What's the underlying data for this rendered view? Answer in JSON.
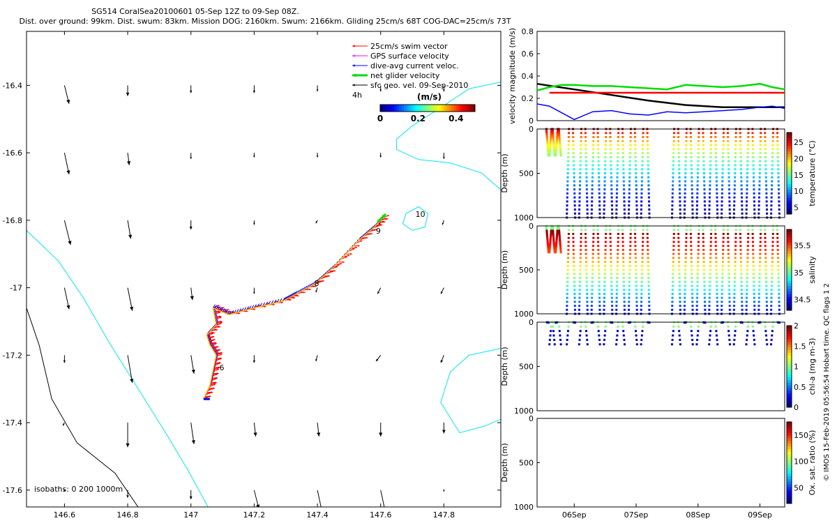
{
  "header": {
    "line1": "SG514 CoralSea20100601 05-Sep 12Z to 09-Sep 08Z.",
    "line2": "Dist. over ground: 99km. Dist. swum: 83km. Mission DOG: 2160km. Swum: 2166km. Gliding 25cm/s 68T COG-DAC=25cm/s 73T"
  },
  "credit": "© IMOS 15-Feb-2019 05:56:54 Hobart time. QC flags 1  2",
  "colors": {
    "swim": "#ff0000",
    "gps": "#ff00ff",
    "dac": "#0000ff",
    "net": "#00dd00",
    "geo": "#000000",
    "coast": "#00e5ee",
    "isobath_black": "#000000"
  },
  "chart_data": [
    {
      "type": "scatter",
      "name": "map",
      "xlim": [
        146.48,
        147.98
      ],
      "ylim": [
        -17.65,
        -16.24
      ],
      "xticks": [
        "146.6",
        "146.8",
        "147",
        "147.2",
        "147.4",
        "147.6",
        "147.8"
      ],
      "xtick_values": [
        146.6,
        146.8,
        147.0,
        147.2,
        147.4,
        147.6,
        147.8
      ],
      "yticks": [
        "-16.4",
        "-16.6",
        "-16.8",
        "-17",
        "-17.2",
        "-17.4",
        "-17.6"
      ],
      "ytick_values": [
        -16.4,
        -16.6,
        -16.8,
        -17.0,
        -17.2,
        -17.4,
        -17.6
      ],
      "legend": [
        {
          "label": "25cm/s swim vector",
          "color": "#ff0000"
        },
        {
          "label": "GPS surface velocity",
          "color": "#ff00ff"
        },
        {
          "label": "dive-avg current veloc.",
          "color": "#0000ff"
        },
        {
          "label": "net glider velocity",
          "color": "#00dd00"
        },
        {
          "label": "sfc geo. vel. 09-Sep-2010",
          "color": "#000000"
        }
      ],
      "legend_note": "4h",
      "colorbar": {
        "title": "(m/s)",
        "ticks": [
          "0",
          "0.2",
          "0.4"
        ],
        "tick_values": [
          0,
          0.2,
          0.4
        ],
        "range": [
          0,
          0.5
        ]
      },
      "isobath_label": "isobaths:  0    200   1000m",
      "track_labels": [
        {
          "text": "6",
          "x": 147.09,
          "y": -17.245
        },
        {
          "text": "8",
          "x": 147.39,
          "y": -16.995
        },
        {
          "text": "9",
          "x": 147.585,
          "y": -16.84
        },
        {
          "text": "10",
          "x": 147.71,
          "y": -16.79
        }
      ],
      "track": [
        [
          147.04,
          -17.33
        ],
        [
          147.06,
          -17.29
        ],
        [
          147.07,
          -17.245
        ],
        [
          147.08,
          -17.2
        ],
        [
          147.06,
          -17.17
        ],
        [
          147.05,
          -17.14
        ],
        [
          147.08,
          -17.11
        ],
        [
          147.07,
          -17.06
        ],
        [
          147.12,
          -17.08
        ],
        [
          147.2,
          -17.06
        ],
        [
          147.29,
          -17.04
        ],
        [
          147.33,
          -17.02
        ],
        [
          147.39,
          -16.99
        ],
        [
          147.45,
          -16.94
        ],
        [
          147.53,
          -16.86
        ],
        [
          147.58,
          -16.82
        ],
        [
          147.61,
          -16.79
        ]
      ],
      "geo_vectors": {
        "lons": [
          146.6,
          146.8,
          147.0,
          147.2,
          147.4,
          147.6,
          147.8
        ],
        "lats": [
          -16.4,
          -16.6,
          -16.8,
          -17.0,
          -17.2,
          -17.4,
          -17.6
        ],
        "u": [
          [
            0.03,
            0.0,
            0.0,
            0.0,
            0.0,
            0.0,
            0.0
          ],
          [
            0.03,
            0.01,
            0.0,
            0.0,
            0.0,
            0.0,
            0.0
          ],
          [
            0.04,
            0.02,
            0.0,
            0.0,
            -0.01,
            -0.01,
            -0.01
          ],
          [
            0.03,
            0.03,
            0.01,
            0.0,
            -0.01,
            -0.02,
            -0.02
          ],
          [
            0.0,
            0.03,
            0.02,
            0.0,
            -0.01,
            -0.03,
            -0.02
          ],
          [
            -0.01,
            0.0,
            0.02,
            0.01,
            0.01,
            0.0,
            0.0
          ],
          [
            0.0,
            0.0,
            0.0,
            0.03,
            0.03,
            0.03,
            0.0
          ]
        ],
        "v": [
          [
            -0.12,
            -0.07,
            -0.05,
            -0.05,
            -0.04,
            -0.04,
            -0.04
          ],
          [
            -0.14,
            -0.08,
            -0.04,
            -0.03,
            -0.03,
            -0.03,
            -0.04
          ],
          [
            -0.16,
            -0.12,
            -0.06,
            -0.03,
            -0.02,
            -0.03,
            -0.03
          ],
          [
            -0.14,
            -0.15,
            -0.08,
            -0.04,
            -0.03,
            -0.04,
            -0.04
          ],
          [
            -0.05,
            -0.18,
            -0.12,
            -0.05,
            -0.04,
            -0.04,
            -0.05
          ],
          [
            -0.02,
            -0.16,
            -0.14,
            -0.09,
            -0.09,
            -0.09,
            -0.07
          ],
          [
            -0.01,
            -0.05,
            -0.06,
            -0.12,
            -0.14,
            -0.14,
            -0.01
          ]
        ]
      },
      "coast_west": [
        [
          146.48,
          -16.83
        ],
        [
          146.58,
          -16.92
        ],
        [
          146.66,
          -17.03
        ],
        [
          146.74,
          -17.16
        ],
        [
          146.84,
          -17.31
        ],
        [
          146.92,
          -17.43
        ],
        [
          146.99,
          -17.54
        ],
        [
          147.06,
          -17.66
        ]
      ],
      "isobath_black": [
        [
          146.48,
          -17.06
        ],
        [
          146.52,
          -17.17
        ],
        [
          146.56,
          -17.33
        ],
        [
          146.64,
          -17.46
        ],
        [
          146.76,
          -17.55
        ],
        [
          146.84,
          -17.66
        ]
      ],
      "coast_ne": [
        [
          147.98,
          -16.39
        ],
        [
          147.88,
          -16.41
        ],
        [
          147.8,
          -16.46
        ],
        [
          147.7,
          -16.52
        ],
        [
          147.65,
          -16.56
        ],
        [
          147.65,
          -16.59
        ],
        [
          147.72,
          -16.62
        ],
        [
          147.82,
          -16.63
        ],
        [
          147.92,
          -16.66
        ],
        [
          147.98,
          -16.71
        ]
      ],
      "coast_e": [
        [
          147.98,
          -17.18
        ],
        [
          147.88,
          -17.2
        ],
        [
          147.82,
          -17.25
        ],
        [
          147.79,
          -17.34
        ],
        [
          147.85,
          -17.43
        ],
        [
          147.93,
          -17.41
        ],
        [
          147.98,
          -17.39
        ]
      ],
      "island_10": [
        [
          147.68,
          -16.78
        ],
        [
          147.72,
          -16.76
        ],
        [
          147.75,
          -16.78
        ],
        [
          147.74,
          -16.82
        ],
        [
          147.7,
          -16.83
        ],
        [
          147.67,
          -16.81
        ],
        [
          147.68,
          -16.78
        ]
      ]
    },
    {
      "type": "line",
      "name": "velocity",
      "ylabel": "velocity magnitude (m/s)",
      "ylim": [
        0,
        0.8
      ],
      "yticks": [
        "0",
        "0.2",
        "0.4",
        "0.6",
        "0.8"
      ],
      "ytick_values": [
        0,
        0.2,
        0.4,
        0.6,
        0.8
      ],
      "xlim": [
        5.4,
        9.4
      ],
      "series": [
        {
          "color": "#000000",
          "x": [
            5.4,
            6.0,
            6.6,
            7.2,
            7.8,
            8.4,
            9.0,
            9.4
          ],
          "y": [
            0.33,
            0.28,
            0.23,
            0.18,
            0.14,
            0.12,
            0.12,
            0.12
          ]
        },
        {
          "color": "#0000ff",
          "x": [
            5.4,
            5.6,
            5.8,
            6.0,
            6.3,
            6.6,
            6.9,
            7.2,
            7.5,
            7.8,
            8.1,
            8.4,
            8.7,
            9.0,
            9.2,
            9.4
          ],
          "y": [
            0.15,
            0.13,
            0.07,
            0.01,
            0.08,
            0.09,
            0.06,
            0.05,
            0.08,
            0.07,
            0.08,
            0.09,
            0.1,
            0.12,
            0.13,
            0.11
          ]
        },
        {
          "color": "#00dd00",
          "x": [
            5.4,
            5.6,
            5.8,
            6.0,
            6.3,
            6.6,
            6.9,
            7.2,
            7.5,
            7.8,
            8.1,
            8.4,
            8.7,
            9.0,
            9.2,
            9.4
          ],
          "y": [
            0.27,
            0.3,
            0.32,
            0.32,
            0.31,
            0.31,
            0.3,
            0.29,
            0.28,
            0.32,
            0.31,
            0.3,
            0.31,
            0.33,
            0.3,
            0.28
          ]
        },
        {
          "color": "#ff0000",
          "x": [
            5.6,
            7.0,
            7.6,
            9.4
          ],
          "y": [
            0.25,
            0.25,
            0.25,
            0.25
          ]
        }
      ]
    },
    {
      "type": "scatter",
      "name": "temperature",
      "ylabel": "Depth (m)",
      "ylim": [
        1000,
        0
      ],
      "yticks": [
        "0",
        "500",
        "1000"
      ],
      "ytick_values": [
        0,
        500,
        1000
      ],
      "colorbar_label": "temperature (°C)",
      "cticks": [
        "5",
        "10",
        "15",
        "20",
        "25"
      ],
      "ctick_values": [
        5,
        10,
        15,
        20,
        25
      ],
      "crange": [
        3,
        28
      ]
    },
    {
      "type": "scatter",
      "name": "salinity",
      "ylabel": "Depth (m)",
      "ylim": [
        1000,
        0
      ],
      "yticks": [
        "0",
        "500",
        "1000"
      ],
      "ytick_values": [
        0,
        500,
        1000
      ],
      "colorbar_label": "salinity",
      "cticks": [
        "34.5",
        "35",
        "35.5"
      ],
      "ctick_values": [
        34.5,
        35,
        35.5
      ],
      "crange": [
        34.3,
        35.8
      ]
    },
    {
      "type": "scatter",
      "name": "chl-a",
      "ylabel": "Depth (m)",
      "ylim": [
        1000,
        0
      ],
      "yticks": [
        "0",
        "500",
        "1000"
      ],
      "ytick_values": [
        0,
        500,
        1000
      ],
      "colorbar_label": "chl-a (mg m-3)",
      "cticks": [
        "0",
        "0.5",
        "1",
        "1.5",
        "2"
      ],
      "ctick_values": [
        0,
        0.5,
        1,
        1.5,
        2
      ],
      "crange": [
        0,
        2
      ]
    },
    {
      "type": "scatter",
      "name": "oxygen",
      "ylabel": "Depth (m)",
      "ylim": [
        1000,
        0
      ],
      "yticks": [
        "0",
        "500",
        "1000"
      ],
      "ytick_values": [
        0,
        500,
        1000
      ],
      "colorbar_label": "Ox. sat. ratio (%)",
      "cticks": [
        "50",
        "100",
        "150"
      ],
      "ctick_values": [
        50,
        100,
        150
      ],
      "crange": [
        20,
        175
      ],
      "xticks": [
        "06Sep",
        "07Sep",
        "08Sep",
        "09Sep"
      ],
      "xtick_values": [
        6.0,
        7.0,
        8.0,
        9.0
      ]
    }
  ]
}
